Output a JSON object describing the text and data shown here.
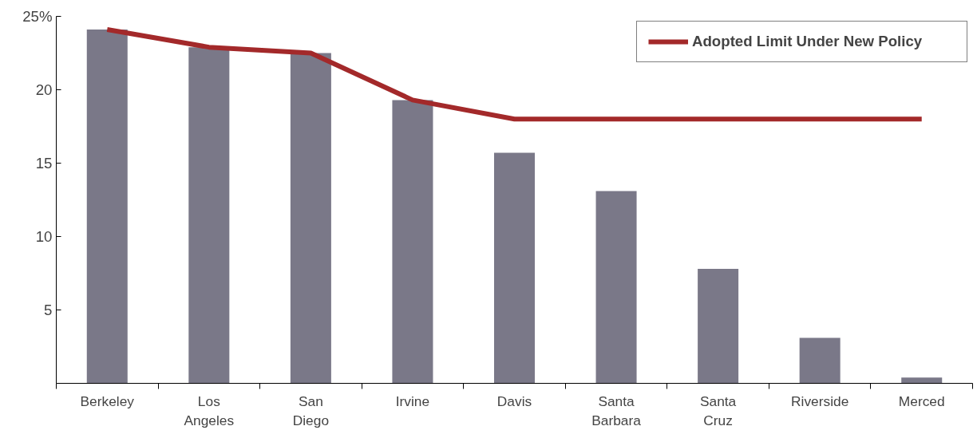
{
  "chart_data": {
    "type": "bar",
    "categories": [
      "Berkeley",
      "Los Angeles",
      "San Diego",
      "Irvine",
      "Davis",
      "Santa Barbara",
      "Santa Cruz",
      "Riverside",
      "Merced"
    ],
    "series": [
      {
        "color": "#7a7888",
        "values": [
          24.1,
          22.9,
          22.5,
          19.3,
          15.7,
          13.1,
          7.8,
          3.1,
          0.4
        ]
      },
      {
        "type": "line",
        "name": "Adopted Limit Under New Policy",
        "color": "#a3292a",
        "values": [
          24.1,
          22.9,
          22.5,
          19.3,
          18.0,
          18.0,
          18.0,
          18.0,
          18.0
        ]
      }
    ],
    "ylim": [
      0,
      25
    ],
    "yticks": [
      5,
      10,
      15,
      20,
      {
        "value": 25,
        "label": "25%"
      }
    ],
    "grid": false,
    "legend": "top right",
    "line_style": "solid",
    "marker": "none"
  }
}
